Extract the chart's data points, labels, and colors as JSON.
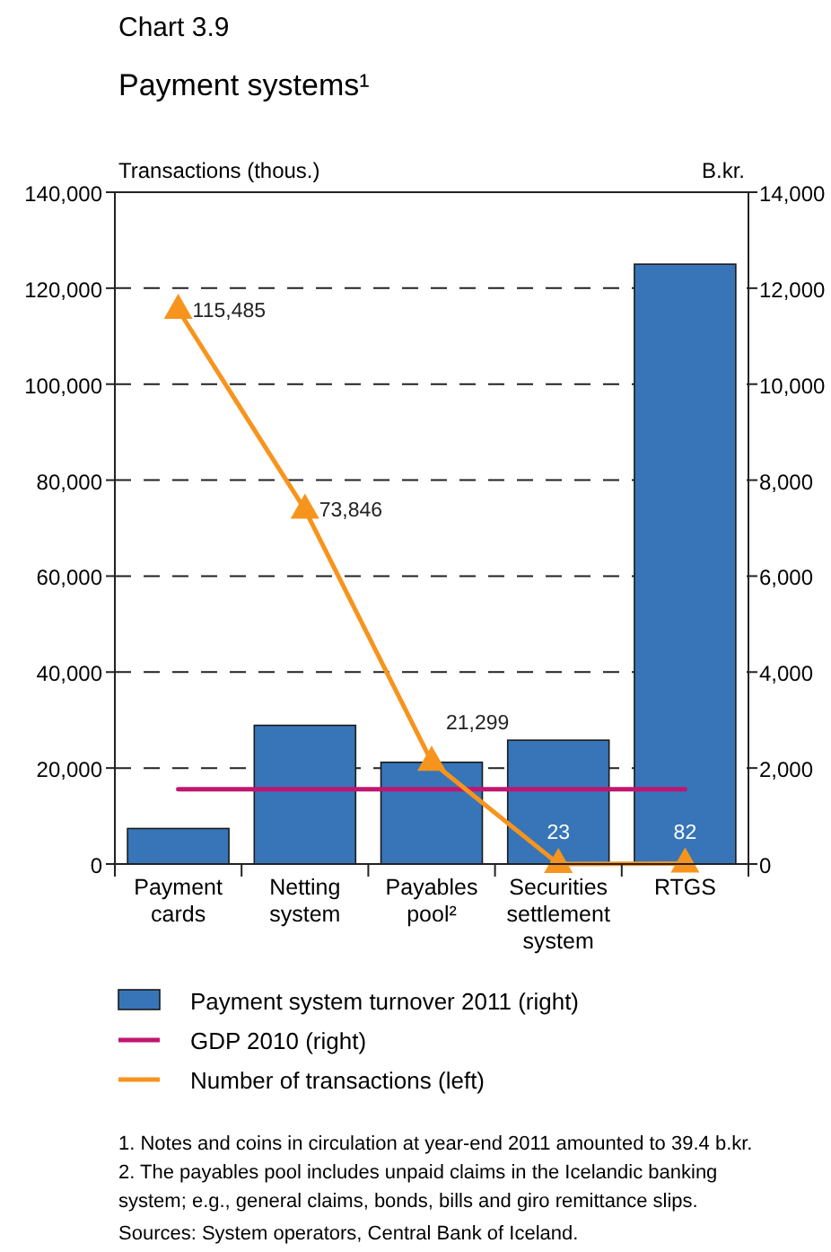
{
  "chart_data": {
    "type": "bar",
    "title": "Chart 3.9",
    "subtitle": "Payment systems¹",
    "ylabel": "Transactions (thous.)",
    "y2label": "B.kr.",
    "categories": [
      "Payment cards",
      "Netting system",
      "Payables pool²",
      "Securities settlement system",
      "RTGS"
    ],
    "series": [
      {
        "name": "Payment system turnover 2011 (right)",
        "axis": "y2",
        "color": "#3775b8",
        "values": [
          740,
          2890,
          2120,
          2580,
          12500
        ]
      },
      {
        "name": "GDP 2010 (right)",
        "type": "line",
        "axis": "y2",
        "color": "#c0166f",
        "marker": "none",
        "values": [
          1560,
          1560,
          1560,
          1560,
          1560
        ]
      },
      {
        "name": "Number of transactions (left)",
        "type": "line",
        "axis": "y",
        "color": "#f7941d",
        "marker": "triangle",
        "values": [
          115485,
          73846,
          21299,
          23,
          82
        ],
        "value_labels": [
          "115,485",
          "73,846",
          "21,299",
          "23",
          "82"
        ]
      }
    ],
    "ylim": [
      0,
      140000
    ],
    "yticks": [
      {
        "value": 0,
        "label": "0"
      },
      {
        "value": 20000,
        "label": "20,000"
      },
      {
        "value": 40000,
        "label": "40,000"
      },
      {
        "value": 60000,
        "label": "60,000"
      },
      {
        "value": 80000,
        "label": "80,000"
      },
      {
        "value": 100000,
        "label": "100,000"
      },
      {
        "value": 120000,
        "label": "120,000"
      },
      {
        "value": 140000,
        "label": "140,000"
      }
    ],
    "y2lim": [
      0,
      14000
    ],
    "y2ticks": [
      {
        "value": 0,
        "label": "0"
      },
      {
        "value": 2000,
        "label": "2,000"
      },
      {
        "value": 4000,
        "label": "4,000"
      },
      {
        "value": 6000,
        "label": "6,000"
      },
      {
        "value": 8000,
        "label": "8,000"
      },
      {
        "value": 10000,
        "label": "10,000"
      },
      {
        "value": 12000,
        "label": "12,000"
      },
      {
        "value": 14000,
        "label": "14,000"
      }
    ],
    "grid": "y",
    "legend": "bottom",
    "line_style": "solid",
    "annotations": [
      "1. Notes and coins in circulation at year-end 2011 amounted to 39.4 b.kr.",
      "2. The payables pool includes unpaid claims in the Icelandic banking system; e.g., general claims, bonds, bills and giro remittance slips.",
      "Sources: System operators, Central Bank of Iceland."
    ]
  }
}
